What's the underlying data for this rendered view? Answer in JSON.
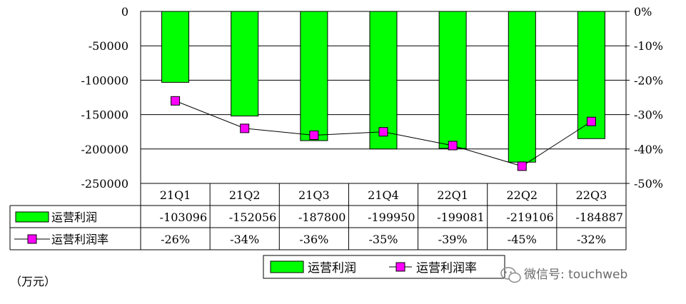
{
  "chart_data": {
    "type": "bar",
    "categories": [
      "21Q1",
      "21Q2",
      "21Q3",
      "21Q4",
      "22Q1",
      "22Q2",
      "22Q3"
    ],
    "series": [
      {
        "name": "运营利润",
        "type": "bar",
        "axis": "left",
        "values": [
          -103096,
          -152056,
          -187800,
          -199950,
          -199081,
          -219106,
          -184887
        ],
        "labels": [
          "-103096",
          "-152056",
          "-187800",
          "-199950",
          "-199081",
          "-219106",
          "-184887"
        ],
        "color": "#00ff00"
      },
      {
        "name": "运营利润率",
        "type": "line",
        "axis": "right",
        "values": [
          -26,
          -34,
          -36,
          -35,
          -39,
          -45,
          -32
        ],
        "labels": [
          "-26%",
          "-34%",
          "-36%",
          "-35%",
          "-39%",
          "-45%",
          "-32%"
        ],
        "color": "#ff00ff"
      }
    ],
    "y_left": {
      "min": -250000,
      "max": 0,
      "ticks": [
        0,
        -50000,
        -100000,
        -150000,
        -200000,
        -250000
      ],
      "tick_labels": [
        "0",
        "-50000",
        "-100000",
        "-150000",
        "-200000",
        "-250000"
      ]
    },
    "y_right": {
      "min": -50,
      "max": 0,
      "ticks": [
        0,
        -10,
        -20,
        -30,
        -40,
        -50
      ],
      "tick_labels": [
        "0%",
        "-10%",
        "-20%",
        "-30%",
        "-40%",
        "-50%"
      ]
    },
    "unit_label": "（万元）",
    "grid": true,
    "legend": {
      "position": "bottom",
      "items": [
        "运营利润",
        "运营利润率"
      ]
    }
  },
  "watermark": {
    "icon": "wechat-icon",
    "text": "微信号: touchweb"
  }
}
